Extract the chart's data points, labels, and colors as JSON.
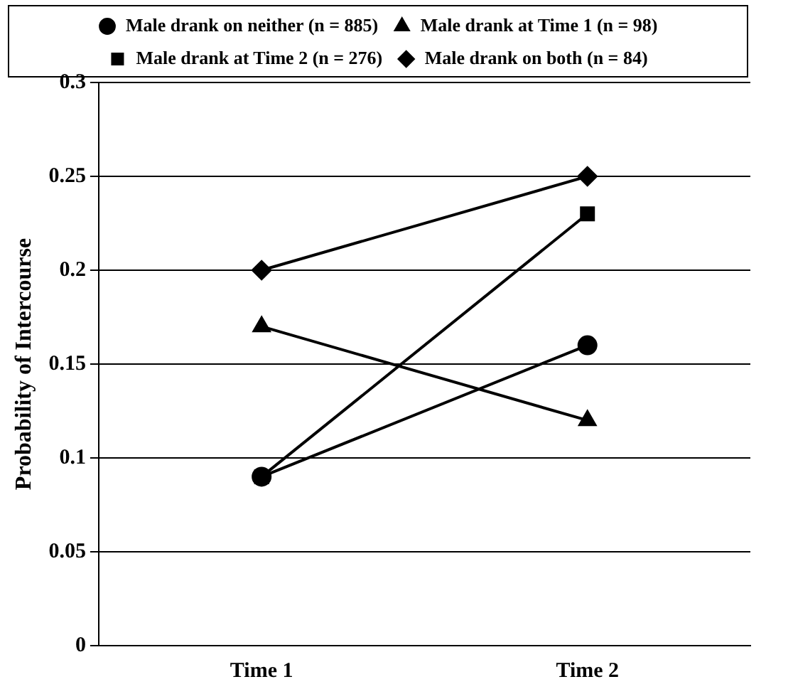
{
  "chart_data": {
    "type": "line",
    "ylabel": "Probability of Intercourse",
    "categories": [
      "Time 1",
      "Time 2"
    ],
    "series": [
      {
        "name": "Male drank on neither (n = 885)",
        "color": "#000000",
        "marker": "circle",
        "values": [
          0.09,
          0.16
        ]
      },
      {
        "name": "Male drank at Time 1 (n = 98)",
        "color": "#000000",
        "marker": "triangle",
        "values": [
          0.17,
          0.12
        ]
      },
      {
        "name": "Male drank at Time 2 (n = 276)",
        "color": "#000000",
        "marker": "square",
        "values": [
          0.09,
          0.23
        ]
      },
      {
        "name": "Male drank on both (n = 84)",
        "color": "#000000",
        "marker": "diamond",
        "values": [
          0.2,
          0.25
        ]
      }
    ],
    "ylim": [
      0,
      0.3
    ],
    "yticks": [
      0,
      0.05,
      0.1,
      0.15,
      0.2,
      0.25,
      0.3
    ],
    "grid": "y",
    "legend": "top",
    "line_style": "solid"
  }
}
